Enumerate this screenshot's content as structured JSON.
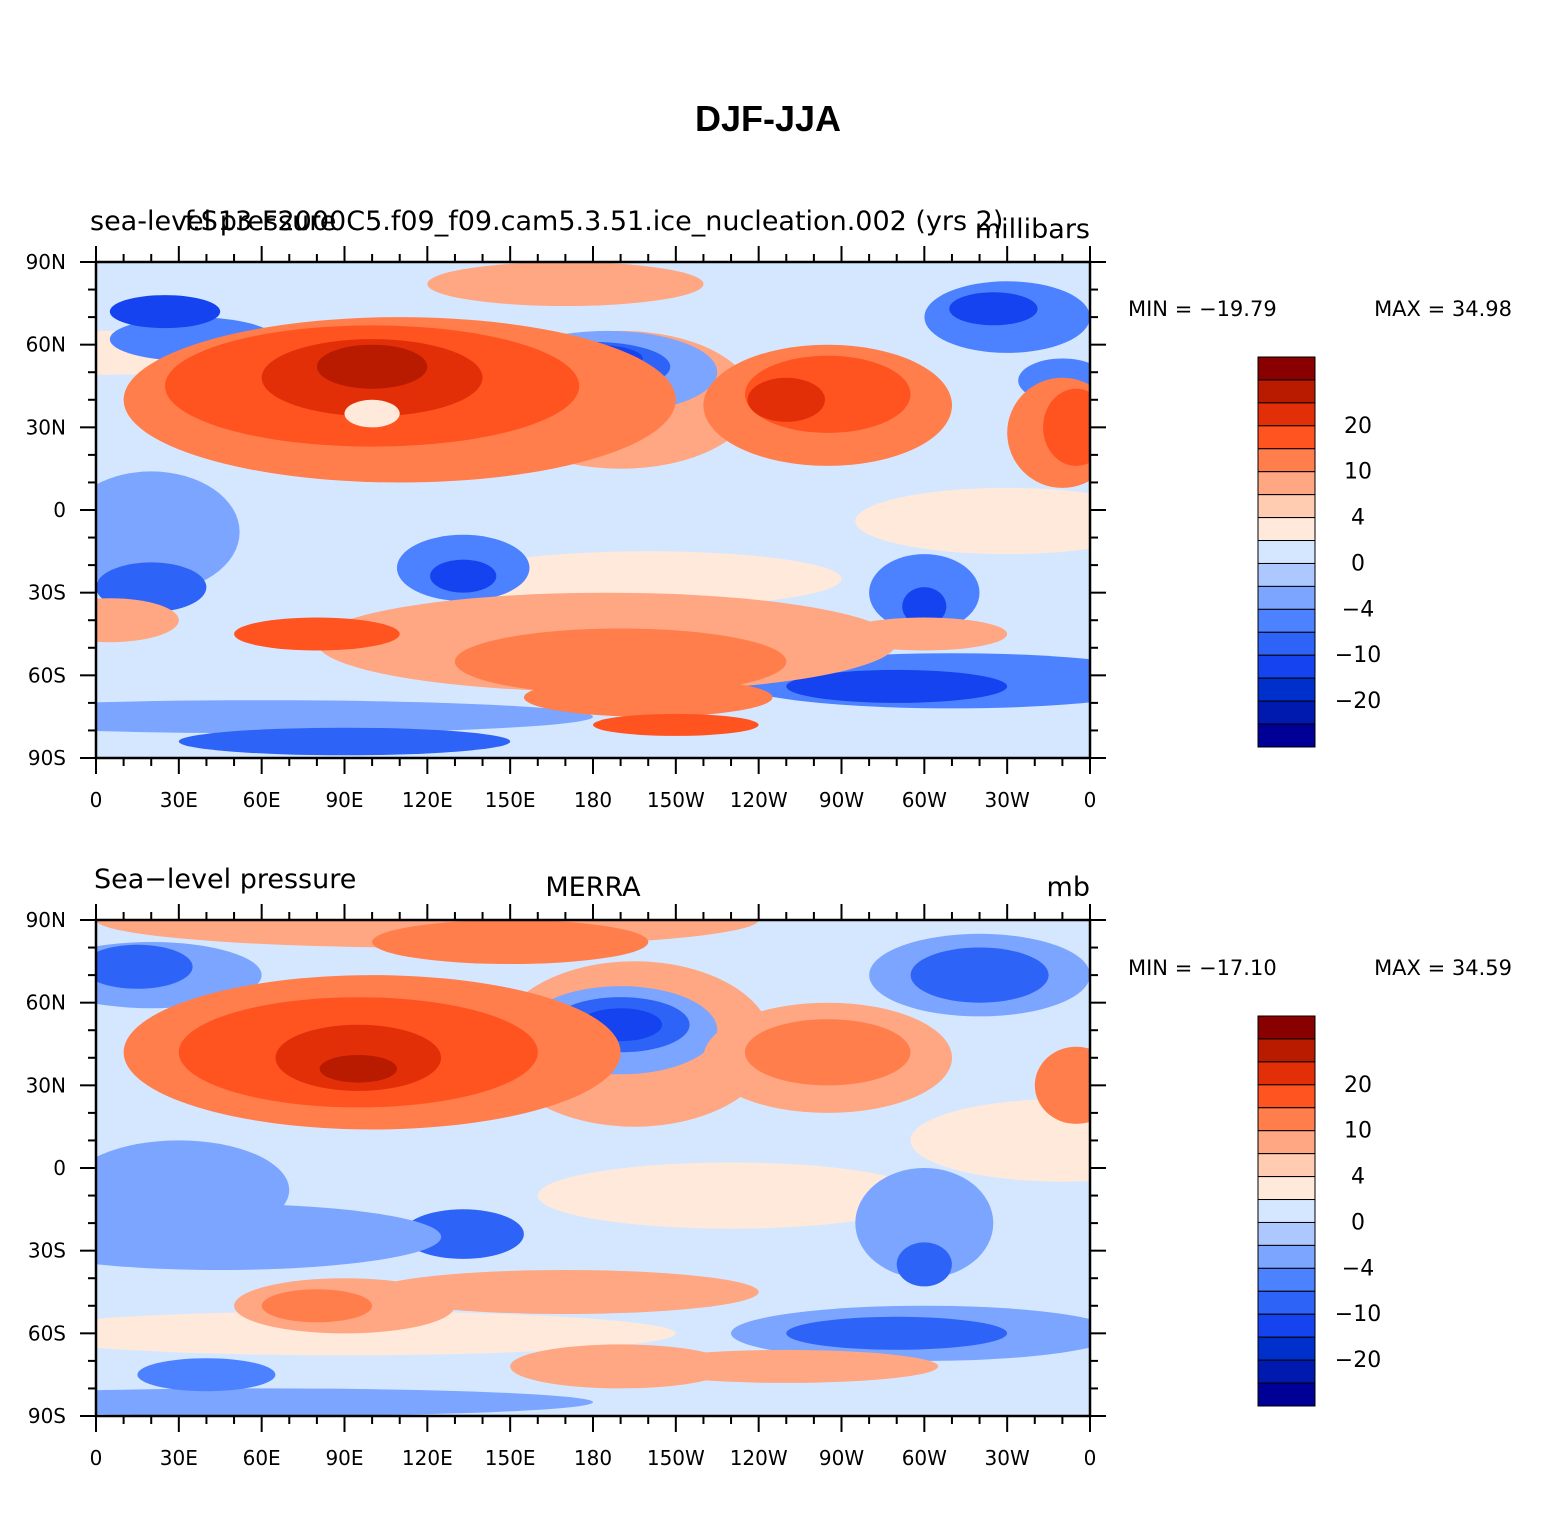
{
  "figure": {
    "title": "DJF-JJA",
    "x_tick_labels": [
      "0",
      "30E",
      "60E",
      "90E",
      "120E",
      "150E",
      "180",
      "150W",
      "120W",
      "90W",
      "60W",
      "30W",
      "0"
    ],
    "y_tick_labels": [
      "90N",
      "60N",
      "30N",
      "0",
      "30S",
      "60S",
      "90S"
    ],
    "colorbar": {
      "levels": [
        -25,
        -20,
        -15,
        -10,
        -7,
        -4,
        -2,
        0,
        2,
        4,
        7,
        10,
        15,
        20,
        25
      ],
      "colors": [
        "#000096",
        "#0019AF",
        "#0030CC",
        "#1543EF",
        "#2E63F7",
        "#4C82FF",
        "#7BA5FF",
        "#ADC8FF",
        "#D5E7FF",
        "#FFE9DA",
        "#FFCBB1",
        "#FFA682",
        "#FF7E4C",
        "#FF5320",
        "#E32F08",
        "#B81B00",
        "#890000"
      ],
      "tick_labels": [
        "20",
        "10",
        "4",
        "0",
        "−4",
        "−10",
        "−20"
      ]
    }
  },
  "chart_data": [
    {
      "type": "heatmap",
      "left_title": "sea-level pressure",
      "center_title": "f.S13-F2000C5.f09_f09.cam5.3.51.ice_nucleation.002  (yrs 2)",
      "right_title": "millibars",
      "min_label": "MIN = −19.79",
      "max_label": "MAX =   34.98",
      "min": -19.79,
      "max": 34.98,
      "lon_range": [
        0,
        360
      ],
      "lat_range": [
        -90,
        90
      ],
      "units": "millibars"
    },
    {
      "type": "heatmap",
      "left_title": "Sea−level pressure",
      "center_title": "MERRA",
      "right_title": "mb",
      "min_label": "MIN = −17.10",
      "max_label": "MAX =   34.59",
      "min": -17.1,
      "max": 34.59,
      "lon_range": [
        0,
        360
      ],
      "lat_range": [
        -90,
        90
      ],
      "units": "mb"
    }
  ]
}
